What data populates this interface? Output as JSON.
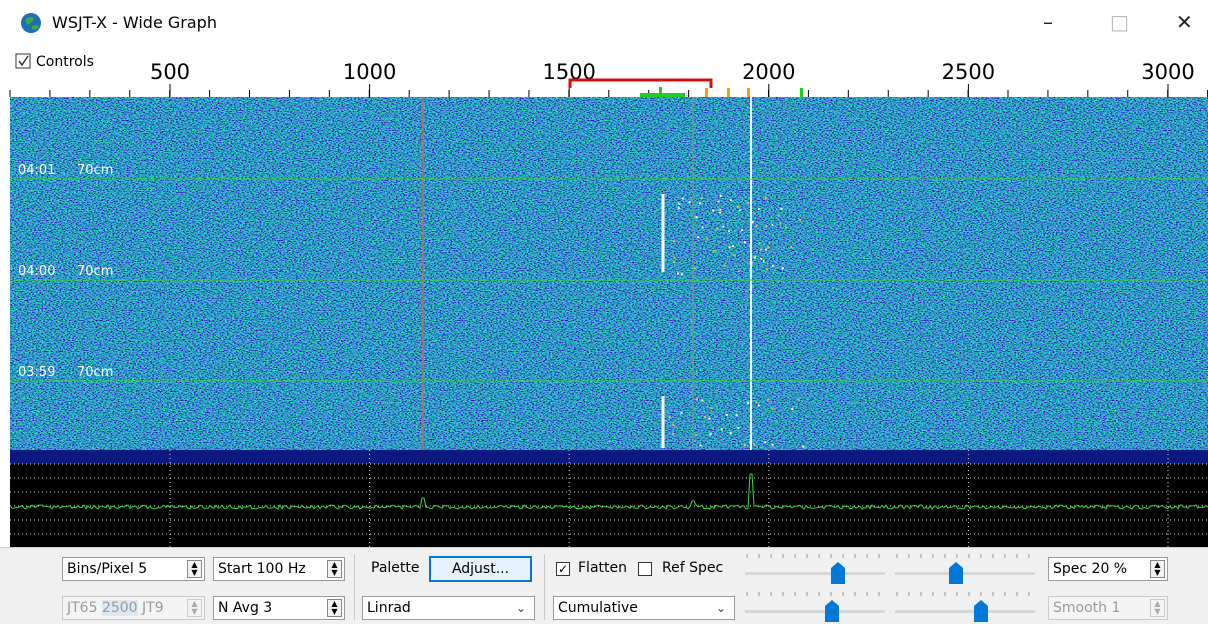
{
  "window": {
    "title": "WSJT-X - Wide Graph"
  },
  "scale": {
    "controls_label": "Controls",
    "labels": [
      500,
      1000,
      1500,
      2000,
      2500,
      3000
    ]
  },
  "waterfall": {
    "timestamps": [
      {
        "time": "04:01",
        "band": "70cm"
      },
      {
        "time": "04:00",
        "band": "70cm"
      },
      {
        "time": "03:59",
        "band": "70cm"
      }
    ]
  },
  "controls": {
    "bins_pixel": "Bins/Pixel 5",
    "start": "Start 100 Hz",
    "palette_label": "Palette",
    "adjust_button": "Adjust...",
    "flatten": "Flatten",
    "ref_spec": "Ref Spec",
    "spec": "Spec 20 %",
    "mode": [
      "JT65",
      "2500",
      "JT9"
    ],
    "n_avg": "N Avg 3",
    "palette": "Linrad",
    "spectrum_mode": "Cumulative",
    "smooth": "Smooth 1"
  }
}
